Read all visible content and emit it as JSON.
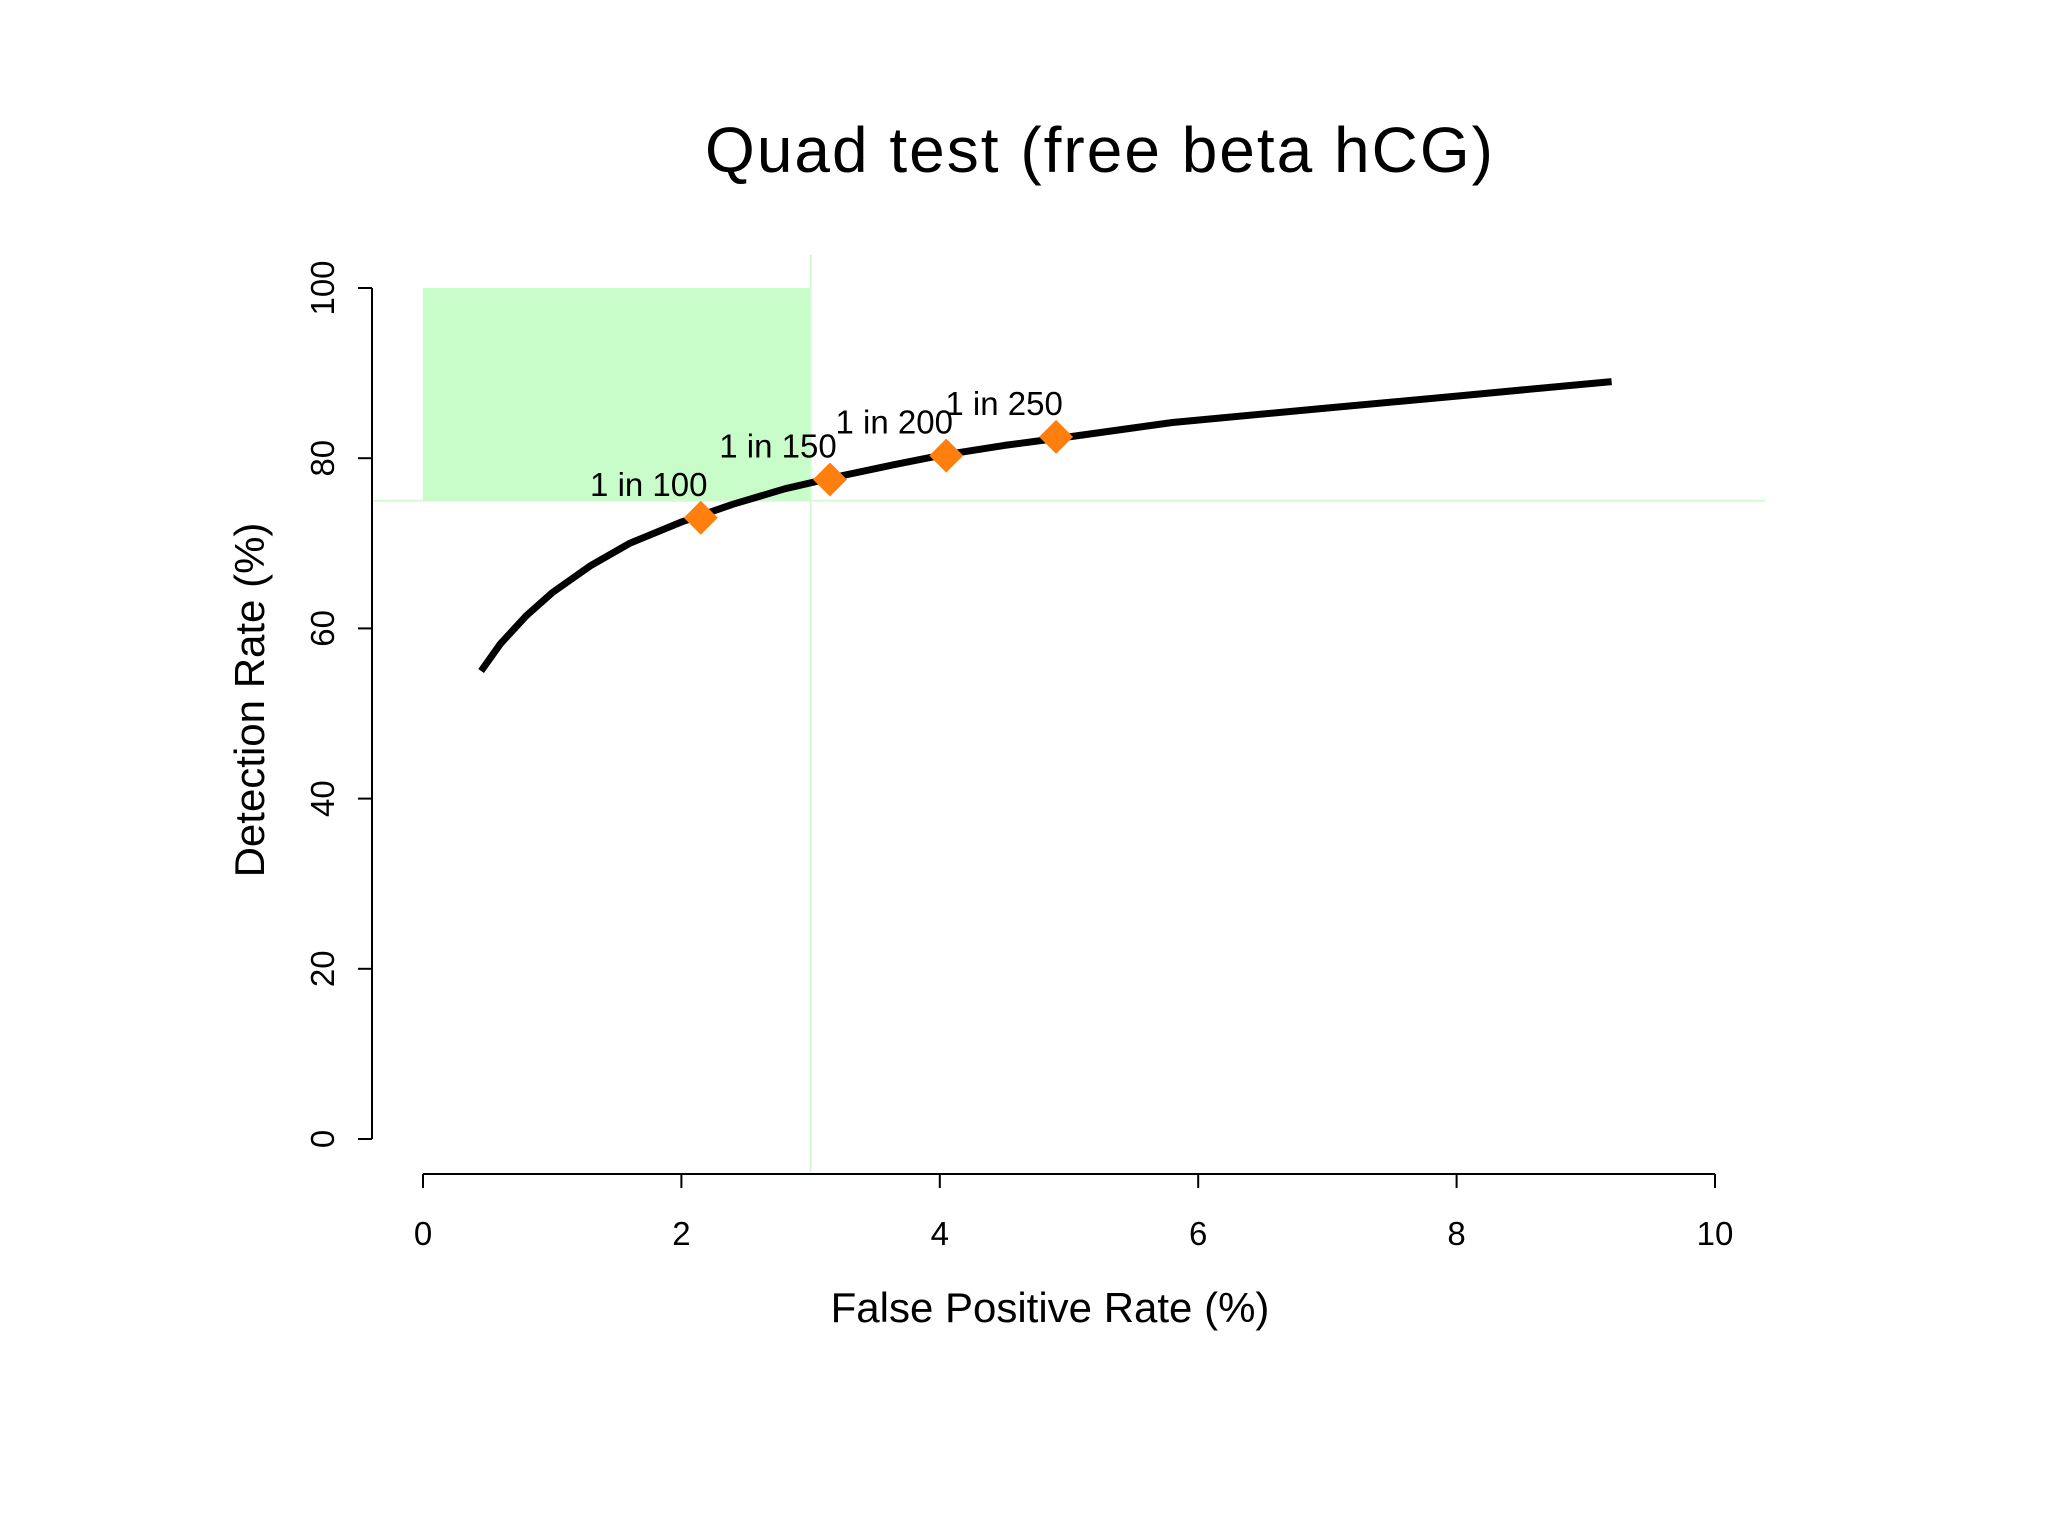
{
  "chart_data": {
    "type": "line",
    "title": "Quad test (free beta hCG)",
    "xlabel": "False Positive Rate (%)",
    "ylabel": "Detection Rate (%)",
    "xlim": [
      0,
      10
    ],
    "ylim": [
      0,
      100
    ],
    "x_ticks": [
      "0",
      "2",
      "4",
      "6",
      "8",
      "10"
    ],
    "y_ticks": [
      "0",
      "20",
      "40",
      "60",
      "80",
      "100"
    ],
    "grid": false,
    "series": [
      {
        "x": [
          0.45,
          0.6,
          0.8,
          1.0,
          1.3,
          1.6,
          2.0,
          2.4,
          2.8,
          3.2,
          3.6,
          4.0,
          4.5,
          5.0,
          5.8,
          7.0,
          8.0,
          9.2
        ],
        "values": [
          55,
          58.2,
          61.5,
          64.2,
          67.4,
          70,
          72.5,
          74.6,
          76.4,
          77.8,
          79.1,
          80.3,
          81.5,
          82.5,
          84.2,
          85.9,
          87.3,
          89
        ]
      }
    ],
    "highlight_points": [
      {
        "label": "1 in 100",
        "x": 2.15,
        "y": 73
      },
      {
        "label": "1 in 150",
        "x": 3.15,
        "y": 77.5
      },
      {
        "label": "1 in 200",
        "x": 4.05,
        "y": 80.3
      },
      {
        "label": "1 in 250",
        "x": 4.9,
        "y": 82.5
      }
    ],
    "target_region": {
      "x": [
        0,
        3
      ],
      "y": [
        75,
        100
      ]
    },
    "reference_lines": {
      "x": 3,
      "y": 75
    },
    "colors": {
      "line": "#000000",
      "marker": "#ff7f0e",
      "region": "#c8fcc8",
      "reference": "#d4fad4"
    }
  }
}
